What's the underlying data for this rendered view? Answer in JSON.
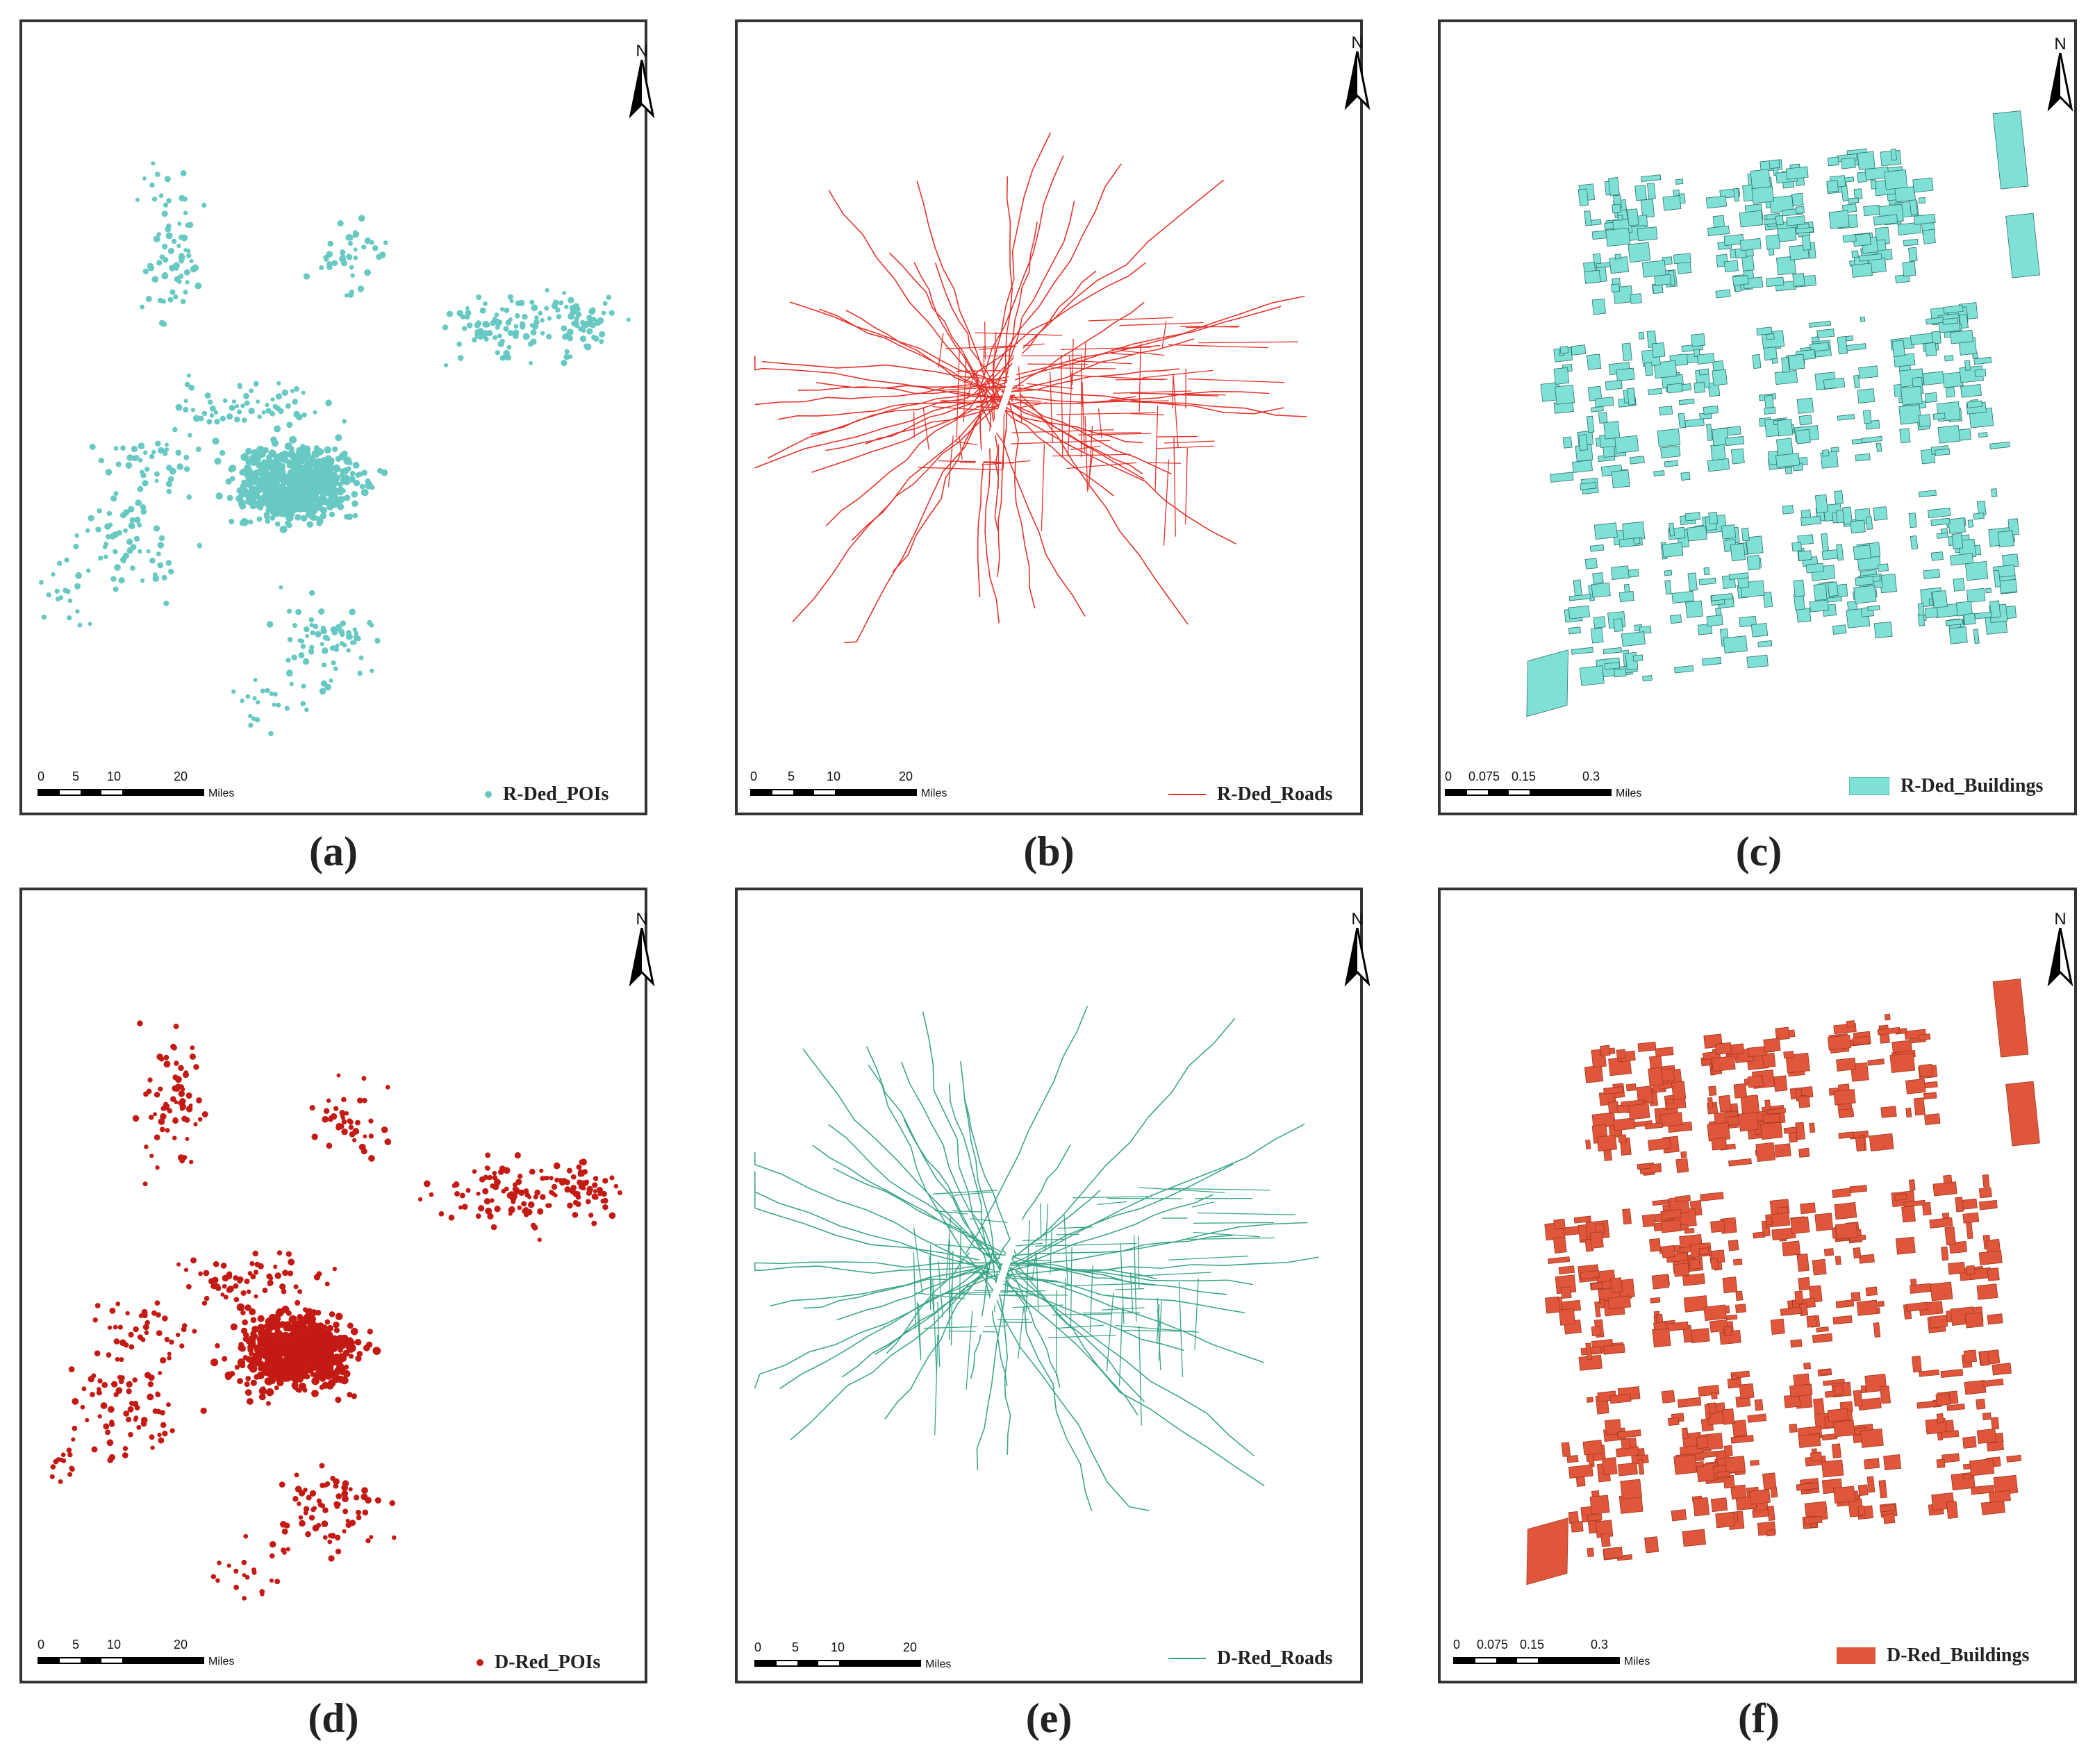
{
  "north_label": "N",
  "scale_unit": "Miles",
  "panels": [
    {
      "caption": "(a)",
      "legend": "R-Ded_POIs",
      "kind": "poi",
      "color": "#68c9c3",
      "scale_ticks": [
        "0",
        "5",
        "10",
        "20"
      ]
    },
    {
      "caption": "(b)",
      "legend": "R-Ded_Roads",
      "kind": "road",
      "color": "#e3322a",
      "scale_ticks": [
        "0",
        "5",
        "10",
        "20"
      ]
    },
    {
      "caption": "(c)",
      "legend": "R-Ded_Buildings",
      "kind": "building",
      "color": "#7fe0d6",
      "scale_ticks": [
        "0",
        "0.075",
        "0.15",
        "0.3"
      ]
    },
    {
      "caption": "(d)",
      "legend": "D-Red_POIs",
      "kind": "poi",
      "color": "#c41a14",
      "scale_ticks": [
        "0",
        "5",
        "10",
        "20"
      ]
    },
    {
      "caption": "(e)",
      "legend": "D-Red_Roads",
      "kind": "road",
      "color": "#3aa58a",
      "scale_ticks": [
        "0",
        "5",
        "10",
        "20"
      ]
    },
    {
      "caption": "(f)",
      "legend": "D-Red_Buildings",
      "kind": "building",
      "color": "#e0563a",
      "scale_ticks": [
        "0",
        "0.075",
        "0.15",
        "0.3"
      ]
    }
  ]
}
